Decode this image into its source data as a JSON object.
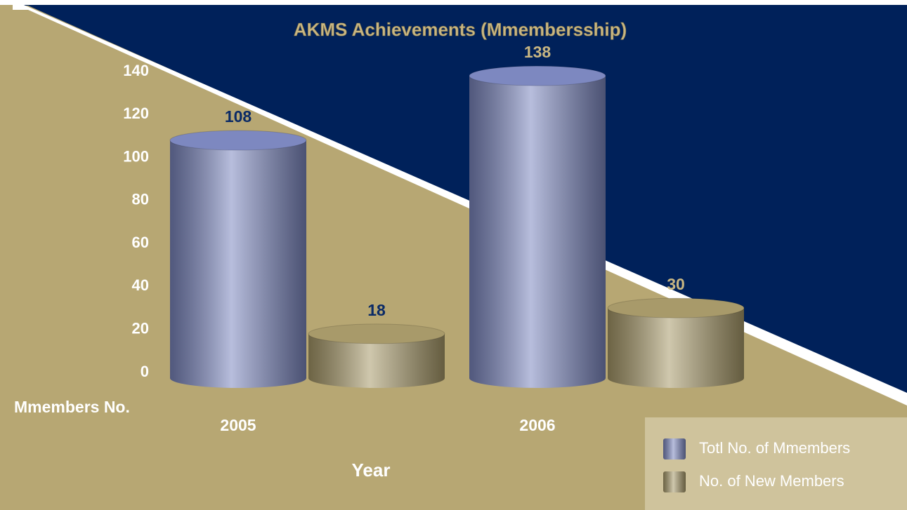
{
  "chart_data": {
    "type": "bar",
    "title": "AKMS Achievements (Mmembersship)",
    "x_label": "Year",
    "y_label": "Mmembers No.",
    "categories": [
      "2005",
      "2006"
    ],
    "series": [
      {
        "name": "Totl No. of Mmembers",
        "color": "#7d88c0",
        "values": [
          108,
          138
        ]
      },
      {
        "name": "No. of New Members",
        "color": "#a89a6a",
        "values": [
          18,
          30
        ]
      }
    ],
    "ylim": [
      0,
      140
    ],
    "yticks": [
      0,
      20,
      40,
      60,
      80,
      100,
      120,
      140
    ],
    "grid": false,
    "legend": "lower right"
  }
}
